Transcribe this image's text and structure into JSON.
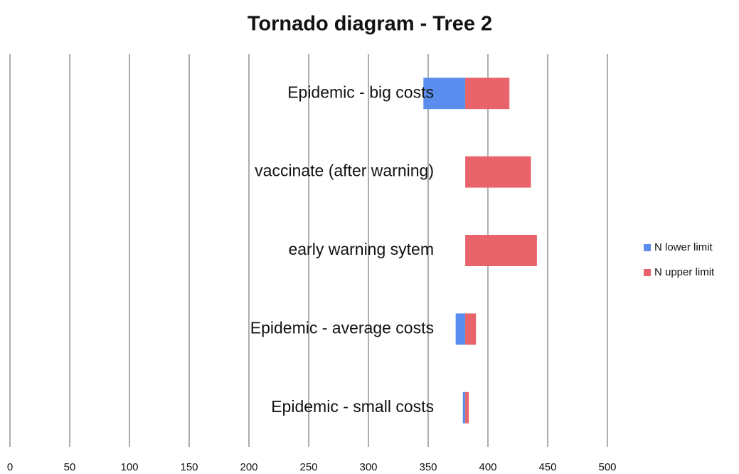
{
  "chart_data": {
    "type": "tornado",
    "title": "Tornado diagram - Tree 2",
    "categories": [
      "Epidemic - big costs",
      "vaccinate (after warning)",
      "early warning sytem",
      "Epidemic - average costs",
      "Epidemic - small costs"
    ],
    "base_value": 381,
    "series": [
      {
        "name": "N lower limit",
        "color": "#5b8def",
        "values": [
          346,
          381,
          381,
          373,
          379
        ]
      },
      {
        "name": "N upper limit",
        "color": "#e8636a",
        "values": [
          418,
          436,
          441,
          390,
          384
        ]
      }
    ],
    "xlim": [
      0,
      500
    ],
    "xticks": [
      0,
      50,
      100,
      150,
      200,
      250,
      300,
      350,
      400,
      450,
      500
    ],
    "grid": true,
    "legend": "right"
  }
}
